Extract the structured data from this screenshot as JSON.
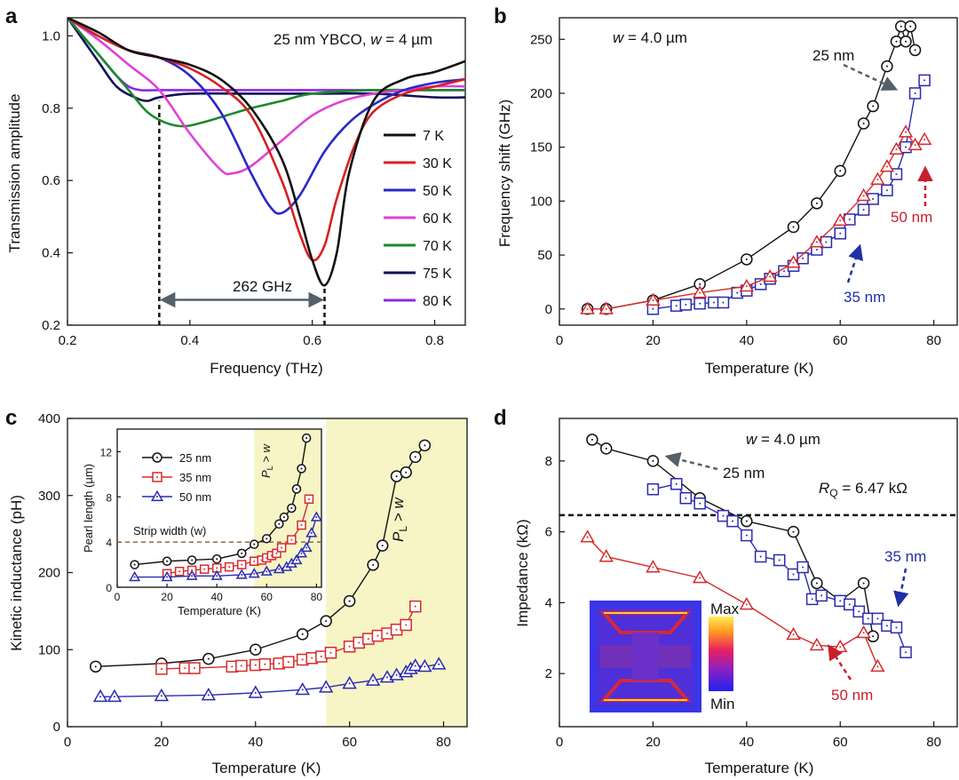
{
  "panels": {
    "a": {
      "label": "a",
      "chart_data": {
        "type": "line",
        "title": "25 nm YBCO, w = 4 µm",
        "title_main": "25 nm YBCO, ",
        "title_var": "w",
        "title_end": " = 4 µm",
        "xlabel": "Frequency (THz)",
        "ylabel": "Transmission amplitude",
        "xlim": [
          0.2,
          0.85
        ],
        "ylim": [
          0.2,
          1.05
        ],
        "xticks": [
          "0.2",
          "0.4",
          "0.6",
          "0.8"
        ],
        "xtick_values": [
          0.2,
          0.4,
          0.6,
          0.8
        ],
        "yticks": [
          "0.2",
          "0.4",
          "0.6",
          "0.8",
          "1.0"
        ],
        "ytick_values": [
          0.2,
          0.4,
          0.6,
          0.8,
          1.0
        ],
        "series": [
          {
            "name": "7 K",
            "color": "#111111",
            "x": [
              0.2,
              0.25,
              0.3,
              0.35,
              0.4,
              0.45,
              0.5,
              0.55,
              0.58,
              0.6,
              0.62,
              0.64,
              0.66,
              0.7,
              0.75,
              0.8,
              0.85
            ],
            "y": [
              1.05,
              1.01,
              0.96,
              0.94,
              0.92,
              0.88,
              0.8,
              0.66,
              0.5,
              0.38,
              0.31,
              0.4,
              0.62,
              0.82,
              0.88,
              0.9,
              0.93
            ]
          },
          {
            "name": "30 K",
            "color": "#d62020",
            "x": [
              0.2,
              0.25,
              0.3,
              0.35,
              0.4,
              0.45,
              0.5,
              0.55,
              0.58,
              0.6,
              0.62,
              0.64,
              0.67,
              0.7,
              0.75,
              0.8,
              0.85
            ],
            "y": [
              1.05,
              1.0,
              0.96,
              0.94,
              0.91,
              0.86,
              0.78,
              0.6,
              0.45,
              0.38,
              0.42,
              0.55,
              0.7,
              0.79,
              0.84,
              0.86,
              0.88
            ]
          },
          {
            "name": "50 K",
            "color": "#2828c8",
            "x": [
              0.2,
              0.25,
              0.3,
              0.35,
              0.4,
              0.45,
              0.5,
              0.53,
              0.55,
              0.58,
              0.62,
              0.66,
              0.7,
              0.75,
              0.8,
              0.85
            ],
            "y": [
              1.05,
              1.0,
              0.96,
              0.94,
              0.89,
              0.79,
              0.62,
              0.53,
              0.51,
              0.56,
              0.68,
              0.76,
              0.81,
              0.85,
              0.87,
              0.88
            ]
          },
          {
            "name": "60 K",
            "color": "#e040d8",
            "x": [
              0.2,
              0.25,
              0.3,
              0.35,
              0.4,
              0.45,
              0.47,
              0.5,
              0.55,
              0.6,
              0.65,
              0.7,
              0.75,
              0.8,
              0.85
            ],
            "y": [
              1.05,
              0.99,
              0.92,
              0.85,
              0.73,
              0.63,
              0.62,
              0.64,
              0.71,
              0.78,
              0.82,
              0.84,
              0.85,
              0.86,
              0.86
            ]
          },
          {
            "name": "70 K",
            "color": "#1a8a2a",
            "x": [
              0.2,
              0.25,
              0.3,
              0.33,
              0.36,
              0.39,
              0.42,
              0.46,
              0.5,
              0.55,
              0.6,
              0.7,
              0.8,
              0.85
            ],
            "y": [
              1.05,
              0.95,
              0.85,
              0.79,
              0.76,
              0.75,
              0.76,
              0.78,
              0.8,
              0.82,
              0.84,
              0.85,
              0.85,
              0.85
            ]
          },
          {
            "name": "75 K",
            "color": "#12125a",
            "x": [
              0.2,
              0.25,
              0.28,
              0.31,
              0.33,
              0.35,
              0.4,
              0.5,
              0.6,
              0.7,
              0.8,
              0.85
            ],
            "y": [
              1.05,
              0.93,
              0.86,
              0.83,
              0.82,
              0.83,
              0.84,
              0.84,
              0.84,
              0.84,
              0.83,
              0.83
            ]
          },
          {
            "name": "80 K",
            "color": "#8a2be2",
            "x": [
              0.2,
              0.25,
              0.28,
              0.3,
              0.32,
              0.35,
              0.4,
              0.5,
              0.6,
              0.7,
              0.8,
              0.85
            ],
            "y": [
              1.05,
              0.95,
              0.89,
              0.86,
              0.85,
              0.85,
              0.85,
              0.85,
              0.85,
              0.85,
              0.85,
              0.85
            ]
          }
        ],
        "annotations": {
          "gap_label": "262 GHz",
          "dashed_x": [
            0.35,
            0.62
          ],
          "arrow_y": 0.27
        }
      }
    },
    "b": {
      "label": "b",
      "chart_data": {
        "type": "scatter",
        "title_var": "w",
        "title_end": " = 4.0 µm",
        "xlabel": "Temperature (K)",
        "ylabel": "Frequency shift (GHz)",
        "xlim": [
          0,
          85
        ],
        "ylim": [
          -15,
          270
        ],
        "xticks": [
          "0",
          "20",
          "40",
          "60",
          "80"
        ],
        "xtick_values": [
          0,
          20,
          40,
          60,
          80
        ],
        "yticks": [
          "0",
          "50",
          "100",
          "150",
          "200",
          "250"
        ],
        "ytick_values": [
          0,
          50,
          100,
          150,
          200,
          250
        ],
        "series": [
          {
            "name": "25 nm",
            "color": "#111111",
            "marker": "circle",
            "x": [
              6,
              10,
              20,
              30,
              40,
              50,
              55,
              60,
              65,
              67,
              70,
              72,
              73,
              74,
              75,
              76
            ],
            "y": [
              0,
              0,
              8,
              23,
              46,
              76,
              98,
              128,
              172,
              188,
              225,
              248,
              262,
              248,
              262,
              240
            ]
          },
          {
            "name": "35 nm",
            "color": "#2a2ab0",
            "marker": "square",
            "x": [
              20,
              25,
              27,
              30,
              33,
              35,
              38,
              40,
              43,
              45,
              48,
              50,
              52,
              55,
              57,
              60,
              62,
              65,
              67,
              70,
              72,
              74,
              76,
              78
            ],
            "y": [
              0,
              3,
              4,
              5,
              6,
              6,
              15,
              17,
              23,
              28,
              35,
              40,
              47,
              55,
              62,
              70,
              83,
              92,
              102,
              110,
              125,
              150,
              200,
              212
            ]
          },
          {
            "name": "50 nm",
            "color": "#d62a2a",
            "marker": "triangle",
            "x": [
              6,
              10,
              20,
              30,
              40,
              45,
              50,
              55,
              60,
              65,
              68,
              70,
              72,
              74,
              76,
              78
            ],
            "y": [
              0,
              0,
              8,
              15,
              21,
              30,
              43,
              62,
              82,
              105,
              120,
              132,
              148,
              164,
              152,
              157
            ]
          }
        ],
        "annotations": [
          "25 nm",
          "35 nm",
          "50 nm"
        ]
      }
    },
    "c": {
      "label": "c",
      "chart_data": {
        "type": "scatter",
        "xlabel": "Temperature (K)",
        "ylabel": "Kinetic inductance (pH)",
        "xlim": [
          0,
          85
        ],
        "ylim": [
          0,
          400
        ],
        "xticks": [
          "0",
          "20",
          "40",
          "60",
          "80"
        ],
        "xtick_values": [
          0,
          20,
          40,
          60,
          80
        ],
        "yticks": [
          "0",
          "100",
          "200",
          "300",
          "400"
        ],
        "ytick_values": [
          0,
          100,
          200,
          300,
          400
        ],
        "shade_from": 55,
        "region_label_main": "P",
        "region_label_sub": "L",
        "region_label_end": " > w",
        "series": [
          {
            "name": "25 nm",
            "color": "#111111",
            "marker": "circle",
            "x": [
              6,
              20,
              30,
              40,
              50,
              55,
              60,
              65,
              67,
              70,
              72,
              74,
              76
            ],
            "y": [
              78,
              82,
              88,
              100,
              120,
              137,
              163,
              210,
              235,
              325,
              330,
              350,
              365
            ]
          },
          {
            "name": "35 nm",
            "color": "#d62a2a",
            "marker": "square",
            "x": [
              20,
              25,
              27,
              35,
              37,
              40,
              42,
              45,
              47,
              50,
              52,
              54,
              56,
              60,
              62,
              64,
              66,
              68,
              70,
              72,
              74
            ],
            "y": [
              75,
              76,
              76,
              78,
              79,
              80,
              81,
              82,
              84,
              87,
              89,
              91,
              96,
              104,
              109,
              114,
              118,
              121,
              126,
              132,
              156
            ]
          },
          {
            "name": "50 nm",
            "color": "#2a2ab0",
            "marker": "triangle",
            "x": [
              7,
              10,
              20,
              30,
              40,
              50,
              55,
              60,
              65,
              68,
              70,
              72,
              73,
              74,
              76,
              79
            ],
            "y": [
              39,
              39,
              40,
              41,
              44,
              48,
              51,
              56,
              60,
              64,
              67,
              71,
              75,
              79,
              78,
              81
            ]
          }
        ],
        "inset": {
          "xlabel": "Temperature (K)",
          "ylabel": "Pearl length (µm)",
          "xlim": [
            0,
            82
          ],
          "ylim": [
            0,
            14
          ],
          "xticks": [
            "0",
            "20",
            "40",
            "60",
            "80"
          ],
          "xtick_values": [
            0,
            20,
            40,
            60,
            80
          ],
          "yticks": [
            "0",
            "4",
            "8",
            "12"
          ],
          "ytick_values": [
            0,
            4,
            8,
            12
          ],
          "strip_width": 4,
          "strip_label": "Strip width (w)",
          "series": [
            {
              "name": "25 nm",
              "color": "#111111",
              "marker": "circle",
              "x": [
                7,
                20,
                30,
                40,
                50,
                55,
                60,
                65,
                67,
                70,
                72,
                74,
                76
              ],
              "y": [
                2.0,
                2.3,
                2.4,
                2.5,
                3.0,
                3.8,
                4.3,
                5.6,
                6.2,
                7.0,
                8.7,
                10.5,
                13.2
              ]
            },
            {
              "name": "35 nm",
              "color": "#d62a2a",
              "marker": "square",
              "x": [
                20,
                25,
                30,
                35,
                40,
                45,
                50,
                55,
                58,
                60,
                62,
                64,
                66,
                70,
                74,
                77
              ],
              "y": [
                1.2,
                1.4,
                1.5,
                1.6,
                1.7,
                1.8,
                2.0,
                2.3,
                2.4,
                2.6,
                2.8,
                3.0,
                3.5,
                4.2,
                5.5,
                7.8
              ]
            },
            {
              "name": "50 nm",
              "color": "#2a2ab0",
              "marker": "triangle",
              "x": [
                7,
                20,
                30,
                40,
                50,
                55,
                60,
                65,
                68,
                70,
                72,
                74,
                76,
                78,
                80
              ],
              "y": [
                0.9,
                0.9,
                1.0,
                1.0,
                1.1,
                1.2,
                1.4,
                1.6,
                1.8,
                2.1,
                2.4,
                3.0,
                3.5,
                4.8,
                6.2
              ]
            }
          ]
        }
      }
    },
    "d": {
      "label": "d",
      "chart_data": {
        "type": "scatter",
        "title_var": "w",
        "title_end": " = 4.0 µm",
        "xlabel": "Temperature (K)",
        "ylabel": "Impedance (kΩ)",
        "xlim": [
          0,
          85
        ],
        "ylim": [
          0.5,
          9.2
        ],
        "xticks": [
          "0",
          "20",
          "40",
          "60",
          "80"
        ],
        "xtick_values": [
          0,
          20,
          40,
          60,
          80
        ],
        "yticks": [
          "2",
          "4",
          "6",
          "8"
        ],
        "ytick_values": [
          2,
          4,
          6,
          8
        ],
        "rq_value": 6.47,
        "rq_label_main": "R",
        "rq_label_sub": "Q",
        "rq_label_end": " = 6.47 kΩ",
        "series": [
          {
            "name": "25 nm",
            "color": "#111111",
            "marker": "circle",
            "x": [
              7,
              10,
              20,
              30,
              40,
              50,
              55,
              60,
              65,
              67
            ],
            "y": [
              8.6,
              8.35,
              8.0,
              6.95,
              6.3,
              6.0,
              4.55,
              4.05,
              4.55,
              3.05
            ]
          },
          {
            "name": "35 nm",
            "color": "#2a2ab0",
            "marker": "square",
            "x": [
              20,
              25,
              27,
              30,
              35,
              37,
              40,
              43,
              47,
              50,
              52,
              54,
              56,
              60,
              62,
              64,
              66,
              68,
              70,
              72,
              74
            ],
            "y": [
              7.2,
              7.35,
              6.95,
              6.8,
              6.45,
              6.3,
              5.9,
              5.3,
              5.2,
              4.8,
              5.0,
              4.1,
              4.2,
              4.05,
              3.95,
              3.75,
              3.55,
              3.55,
              3.35,
              3.3,
              2.6
            ]
          },
          {
            "name": "50 nm",
            "color": "#d62a2a",
            "marker": "triangle",
            "x": [
              6,
              10,
              20,
              30,
              40,
              50,
              55,
              60,
              65,
              68
            ],
            "y": [
              5.85,
              5.3,
              5.0,
              4.7,
              3.95,
              3.1,
              2.8,
              2.75,
              3.15,
              2.2
            ]
          }
        ],
        "annotations": [
          "25 nm",
          "35 nm",
          "50 nm"
        ],
        "colorbar": {
          "max": "Max",
          "min": "Min"
        }
      }
    }
  }
}
